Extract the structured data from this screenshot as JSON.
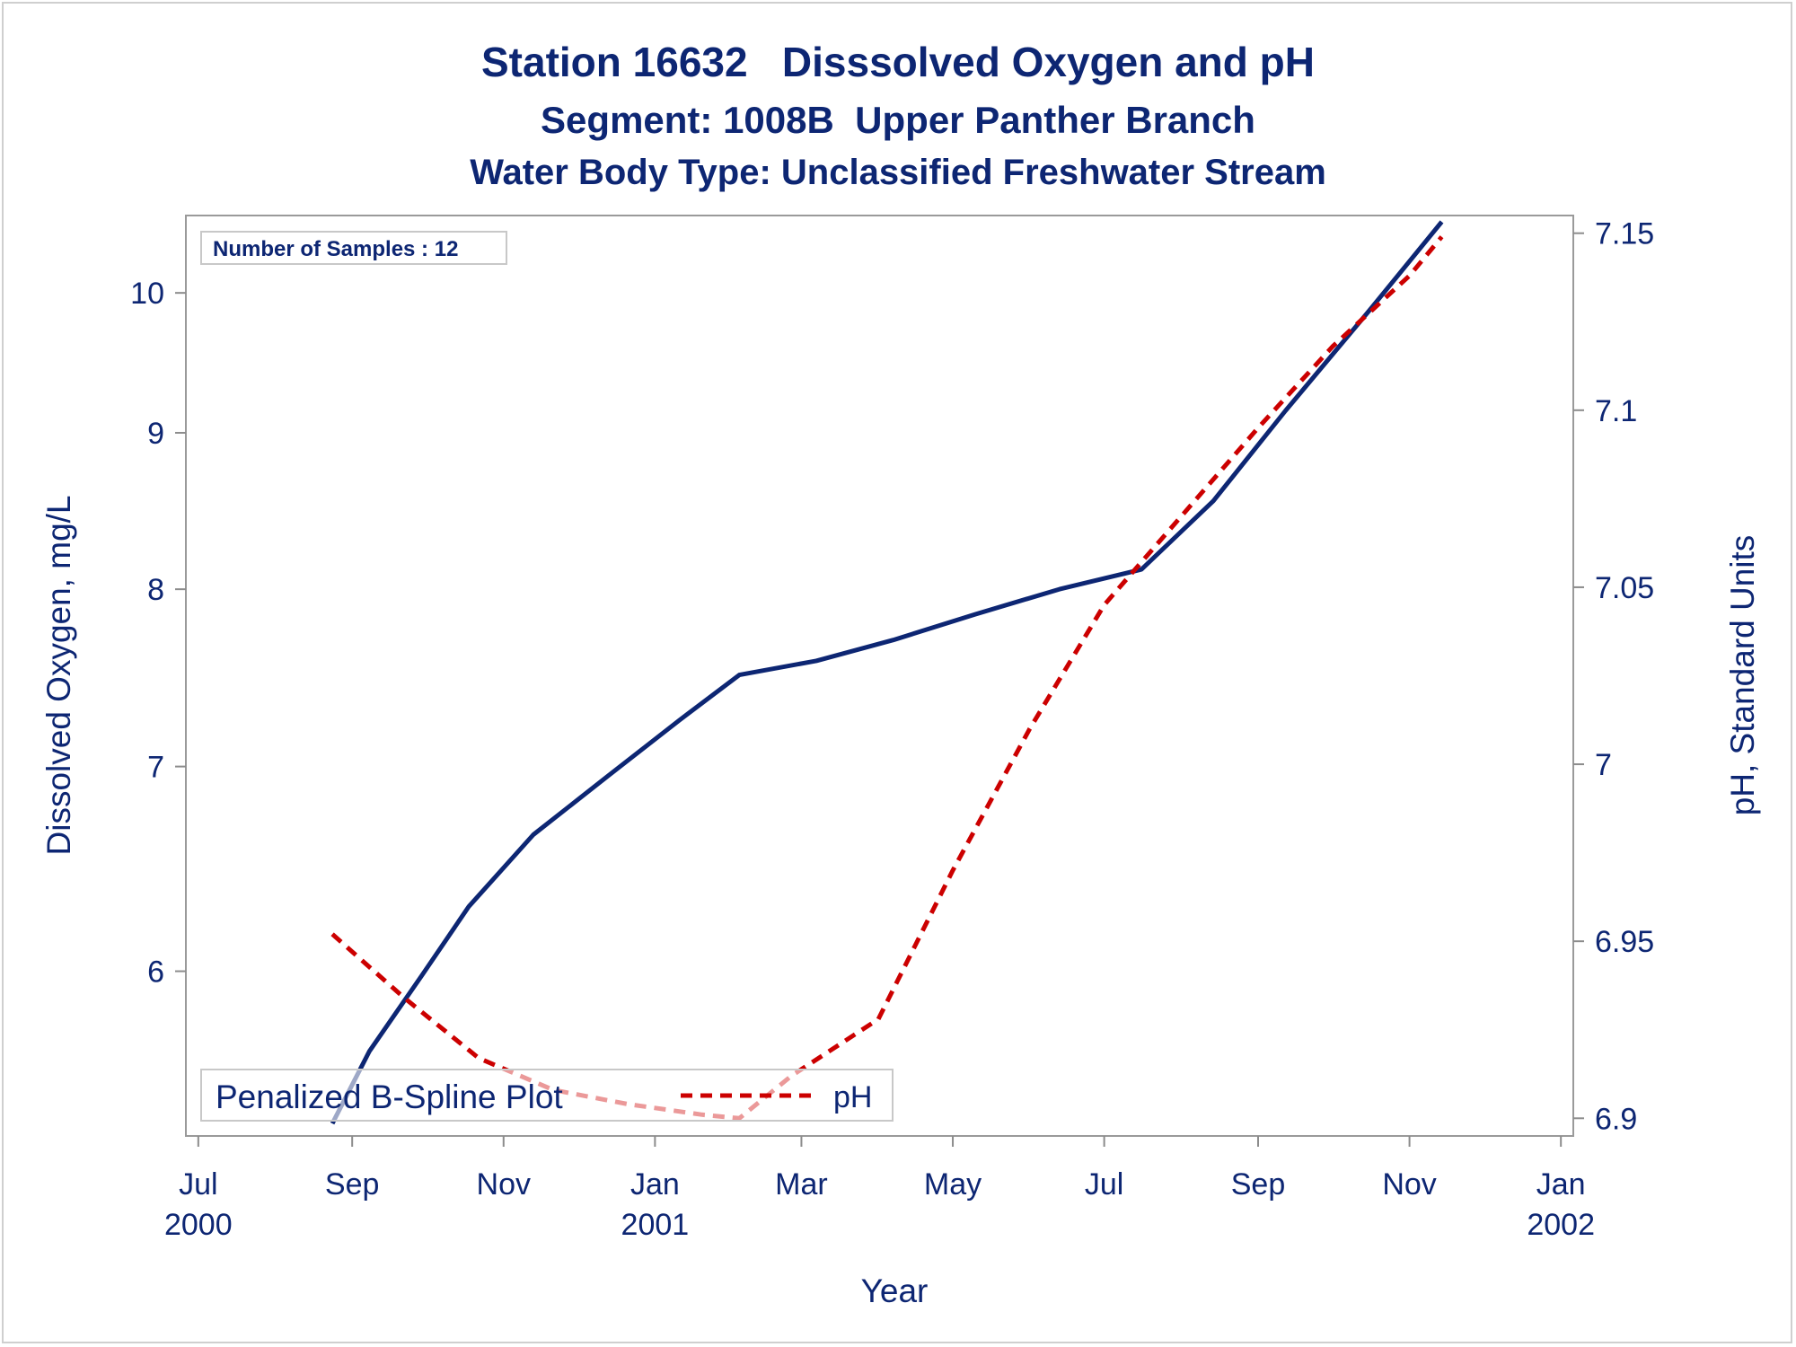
{
  "titles": {
    "line1": "Station 16632   Disssolved Oxygen and pH",
    "line2": "Segment: 1008B  Upper Panther Branch",
    "line3": "Water Body Type: Unclassified Freshwater Stream"
  },
  "inset": {
    "text": "Number of Samples : 12"
  },
  "legend": {
    "title": "Penalized B-Spline Plot",
    "entry": "pH"
  },
  "colors": {
    "do": "#0d2673",
    "ph": "#cc0000",
    "text": "#0d2673"
  },
  "chart_data": {
    "type": "line",
    "xlabel": "Year",
    "ylabel_left": "Dissolved Oxygen, mg/L",
    "ylabel_right": "pH, Standard Units",
    "x_ticks": [
      {
        "line1": "Jul",
        "line2": "2000",
        "date": "2000-07-01"
      },
      {
        "line1": "Sep",
        "line2": "",
        "date": "2000-09-01"
      },
      {
        "line1": "Nov",
        "line2": "",
        "date": "2000-11-01"
      },
      {
        "line1": "Jan",
        "line2": "2001",
        "date": "2001-01-01"
      },
      {
        "line1": "Mar",
        "line2": "",
        "date": "2001-03-01"
      },
      {
        "line1": "May",
        "line2": "",
        "date": "2001-05-01"
      },
      {
        "line1": "Jul",
        "line2": "",
        "date": "2001-07-01"
      },
      {
        "line1": "Sep",
        "line2": "",
        "date": "2001-09-01"
      },
      {
        "line1": "Nov",
        "line2": "",
        "date": "2001-11-01"
      },
      {
        "line1": "Jan",
        "line2": "2002",
        "date": "2002-01-01"
      }
    ],
    "xlim": [
      "2000-06-26",
      "2002-01-06"
    ],
    "y_left_log_scale": true,
    "y_left_ticks": [
      6,
      7,
      8,
      9,
      10
    ],
    "y_left_range": [
      5.3,
      10.6
    ],
    "y_right_ticks": [
      6.9,
      6.95,
      7,
      7.05,
      7.1,
      7.15
    ],
    "y_right_range": [
      6.895,
      7.155
    ],
    "series": [
      {
        "name": "Dissolved Oxygen",
        "axis": "left",
        "style": "solid",
        "points": [
          {
            "x": "2000-08-24",
            "y": 5.35
          },
          {
            "x": "2000-09-08",
            "y": 5.65
          },
          {
            "x": "2000-09-29",
            "y": 5.98
          },
          {
            "x": "2000-10-18",
            "y": 6.3
          },
          {
            "x": "2000-11-13",
            "y": 6.65
          },
          {
            "x": "2000-12-13",
            "y": 6.95
          },
          {
            "x": "2001-01-11",
            "y": 7.25
          },
          {
            "x": "2001-02-04",
            "y": 7.5
          },
          {
            "x": "2001-03-07",
            "y": 7.58
          },
          {
            "x": "2001-04-07",
            "y": 7.7
          },
          {
            "x": "2001-05-10",
            "y": 7.85
          },
          {
            "x": "2001-06-13",
            "y": 8.0
          },
          {
            "x": "2001-07-16",
            "y": 8.12
          },
          {
            "x": "2001-08-14",
            "y": 8.55
          },
          {
            "x": "2001-09-12",
            "y": 9.15
          },
          {
            "x": "2001-10-15",
            "y": 9.85
          },
          {
            "x": "2001-11-14",
            "y": 10.55
          }
        ]
      },
      {
        "name": "pH",
        "axis": "right",
        "style": "dashed",
        "points": [
          {
            "x": "2000-08-24",
            "y": 6.952
          },
          {
            "x": "2000-09-22",
            "y": 6.934
          },
          {
            "x": "2000-10-22",
            "y": 6.917
          },
          {
            "x": "2000-11-21",
            "y": 6.908
          },
          {
            "x": "2000-12-21",
            "y": 6.904
          },
          {
            "x": "2001-01-20",
            "y": 6.901
          },
          {
            "x": "2001-02-04",
            "y": 6.9
          },
          {
            "x": "2001-02-25",
            "y": 6.912
          },
          {
            "x": "2001-04-01",
            "y": 6.928
          },
          {
            "x": "2001-05-01",
            "y": 6.97
          },
          {
            "x": "2001-06-01",
            "y": 7.01
          },
          {
            "x": "2001-07-01",
            "y": 7.045
          },
          {
            "x": "2001-08-01",
            "y": 7.07
          },
          {
            "x": "2001-09-01",
            "y": 7.095
          },
          {
            "x": "2001-10-01",
            "y": 7.118
          },
          {
            "x": "2001-11-01",
            "y": 7.138
          },
          {
            "x": "2001-11-14",
            "y": 7.149
          }
        ]
      }
    ]
  }
}
